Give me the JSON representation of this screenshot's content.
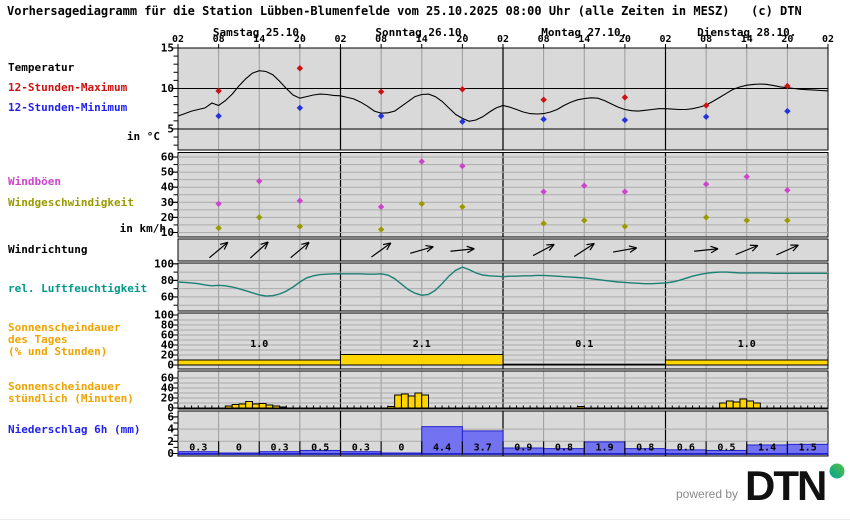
{
  "title": "Vorhersagediagramm für die Station Lübben-Blumenfelde vom 25.10.2025 08:00 Uhr (alle Zeiten in MESZ)   (c) DTN",
  "footer": {
    "powered_by": "powered by",
    "brand": "DTN"
  },
  "row_labels": {
    "temperature": "Temperatur",
    "max12": "12-Stunden-Maximum",
    "min12": "12-Stunden-Minimum",
    "temp_unit": "in °C",
    "gusts": "Windböen",
    "wind_speed": "Windgeschwindigkeit",
    "wind_unit": "in km/h",
    "wind_dir": "Windrichtung",
    "humidity": "rel. Luftfeuchtigkeit",
    "sun_day_1": "Sonnenscheindauer",
    "sun_day_2": "des Tages",
    "sun_day_3": "(% und Stunden)",
    "sun_hour_1": "Sonnenscheindauer",
    "sun_hour_2": "stündlich (Minuten)",
    "precip": "Niederschlag 6h (mm)"
  },
  "colors": {
    "max_red": "#cc1111",
    "min_blue": "#2233dd",
    "gust_magenta": "#cc44cc",
    "speed_olive": "#9a9a00",
    "humidity_teal": "#1b7f74",
    "sunshine_yellow": "#ffd500",
    "precip_fill": "#7373f2",
    "precip_stroke": "#2222cc",
    "panel_bg": "#d9d9d9",
    "grid_gray": "#9c9c9c",
    "grid_light": "#ababab",
    "brand_circle_green": "#57c13e",
    "brand_circle_teal": "#00a398"
  },
  "chart_data": {
    "type": "multi-panel-meteogram",
    "start_label": "Samstag 25.10. 02:00 MESZ",
    "hours_span": 96,
    "days": [
      "Samstag 25.10.",
      "Sonntag 26.10.",
      "Montag 27.10.",
      "Dienstag 28.10."
    ],
    "time_ticks": [
      "02",
      "08",
      "14",
      "20",
      "02",
      "08",
      "14",
      "20",
      "02",
      "08",
      "14",
      "20",
      "02",
      "08",
      "14",
      "20",
      "02"
    ],
    "panels": {
      "temperature": {
        "unit": "°C",
        "axis_labels": [
          15,
          10,
          5
        ],
        "curve_hourly": [
          6.6,
          6.9,
          7.2,
          7.4,
          7.6,
          8.2,
          7.9,
          8.5,
          9.3,
          10.3,
          11.2,
          11.9,
          12.2,
          12.1,
          11.7,
          10.9,
          10.0,
          9.2,
          8.8,
          9.0,
          9.2,
          9.3,
          9.25,
          9.15,
          9.1,
          8.9,
          8.7,
          8.3,
          7.8,
          7.2,
          6.95,
          7.0,
          7.2,
          7.8,
          8.4,
          9.0,
          9.25,
          9.3,
          9.0,
          8.4,
          7.6,
          6.8,
          6.3,
          5.95,
          6.1,
          6.5,
          7.1,
          7.6,
          7.9,
          7.7,
          7.4,
          7.1,
          6.9,
          6.85,
          6.9,
          7.1,
          7.4,
          7.9,
          8.3,
          8.6,
          8.75,
          8.85,
          8.8,
          8.5,
          8.1,
          7.7,
          7.4,
          7.25,
          7.2,
          7.3,
          7.4,
          7.5,
          7.5,
          7.45,
          7.4,
          7.4,
          7.5,
          7.7,
          7.95,
          8.4,
          8.9,
          9.4,
          9.9,
          10.2,
          10.4,
          10.5,
          10.55,
          10.5,
          10.35,
          10.2,
          10.1,
          10.0,
          9.9,
          9.85,
          9.8,
          9.75,
          9.7
        ],
        "points_hours": [
          6,
          18,
          30,
          42,
          54,
          66,
          78,
          90
        ],
        "max12": [
          9.7,
          12.5,
          9.6,
          9.9,
          8.6,
          8.9,
          7.9,
          10.3
        ],
        "min12": [
          6.6,
          7.6,
          6.6,
          5.9,
          6.2,
          6.1,
          6.5,
          7.2
        ]
      },
      "wind": {
        "unit": "km/h",
        "axis_labels": [
          60,
          50,
          40,
          30,
          20,
          10
        ],
        "points_hours": [
          6,
          12,
          18,
          30,
          36,
          42,
          54,
          60,
          66,
          78,
          84,
          90
        ],
        "gusts": [
          29,
          44,
          31,
          27,
          57,
          54,
          37,
          41,
          37,
          42,
          47,
          38
        ],
        "speed": [
          13,
          20,
          14,
          12,
          29,
          27,
          16,
          18,
          14,
          20,
          18,
          18
        ]
      },
      "wind_direction": {
        "points_hours": [
          6,
          12,
          18,
          30,
          36,
          42,
          54,
          60,
          66,
          78,
          84,
          90
        ],
        "arrow_angles_deg_up_from_east": [
          40,
          42,
          40,
          36,
          16,
          6,
          28,
          33,
          10,
          6,
          22,
          24
        ]
      },
      "humidity": {
        "unit": "%",
        "axis_labels": [
          100,
          80,
          60
        ],
        "curve_hourly": [
          78,
          77.5,
          77,
          76,
          74.5,
          73.5,
          74,
          73.5,
          72,
          70,
          67.5,
          65,
          62.5,
          61,
          61.5,
          63.5,
          67,
          72,
          78,
          83,
          85.5,
          87,
          87.5,
          88,
          88,
          88,
          88,
          88,
          87.5,
          87.5,
          88,
          86.5,
          82,
          75.5,
          69,
          64.5,
          62,
          63,
          68,
          76,
          85,
          92,
          96,
          93,
          89,
          86.5,
          85.5,
          85,
          84.5,
          85,
          85,
          85.5,
          85.5,
          86,
          86,
          85.5,
          85,
          84.5,
          84,
          83.5,
          83,
          82,
          81,
          80,
          79,
          78,
          77.5,
          77,
          76.5,
          76,
          76,
          76.5,
          77,
          78,
          80,
          82.5,
          85,
          87,
          88.5,
          89.5,
          90,
          90,
          89.5,
          89,
          89,
          89,
          89,
          89,
          88.5,
          88.5,
          88.5,
          88.5,
          88.5,
          88.5,
          88.5,
          88.5,
          88.5
        ]
      },
      "sunshine_daily": {
        "unit": "% und Stunden",
        "axis_labels": [
          100,
          80,
          60,
          40,
          20,
          0
        ],
        "percent_per_day": [
          10,
          21,
          1,
          10
        ],
        "hours_text_per_day": [
          "1.0",
          "2.1",
          "0.1",
          "1.0"
        ]
      },
      "sunshine_hourly": {
        "unit": "Minuten",
        "axis_labels": [
          60,
          40,
          20,
          0
        ],
        "bars": [
          {
            "day": 0,
            "hour": 9,
            "minutes": 4
          },
          {
            "day": 0,
            "hour": 10,
            "minutes": 7
          },
          {
            "day": 0,
            "hour": 11,
            "minutes": 8
          },
          {
            "day": 0,
            "hour": 12,
            "minutes": 13
          },
          {
            "day": 0,
            "hour": 13,
            "minutes": 8
          },
          {
            "day": 0,
            "hour": 14,
            "minutes": 9
          },
          {
            "day": 0,
            "hour": 15,
            "minutes": 6
          },
          {
            "day": 0,
            "hour": 16,
            "minutes": 4
          },
          {
            "day": 0,
            "hour": 17,
            "minutes": 2
          },
          {
            "day": 1,
            "hour": 9,
            "minutes": 3
          },
          {
            "day": 1,
            "hour": 10,
            "minutes": 26
          },
          {
            "day": 1,
            "hour": 11,
            "minutes": 28
          },
          {
            "day": 1,
            "hour": 12,
            "minutes": 24
          },
          {
            "day": 1,
            "hour": 13,
            "minutes": 30
          },
          {
            "day": 1,
            "hour": 14,
            "minutes": 26
          },
          {
            "day": 2,
            "hour": 13,
            "minutes": 3
          },
          {
            "day": 3,
            "hour": 10,
            "minutes": 10
          },
          {
            "day": 3,
            "hour": 11,
            "minutes": 14
          },
          {
            "day": 3,
            "hour": 12,
            "minutes": 12
          },
          {
            "day": 3,
            "hour": 13,
            "minutes": 18
          },
          {
            "day": 3,
            "hour": 14,
            "minutes": 14
          },
          {
            "day": 3,
            "hour": 15,
            "minutes": 10
          }
        ]
      },
      "precipitation": {
        "unit": "mm",
        "axis_labels": [
          6,
          4,
          2,
          0
        ],
        "values_6h": [
          0.3,
          0,
          0.3,
          0.5,
          0.3,
          0,
          4.4,
          3.7,
          0.9,
          0.8,
          1.9,
          0.8,
          0.6,
          0.5,
          1.4,
          1.5
        ],
        "labels_6h": [
          "0.3",
          "0",
          "0.3",
          "0.5",
          "0.3",
          "0",
          "4.4",
          "3.7",
          "0.9",
          "0.8",
          "1.9",
          "0.8",
          "0.6",
          "0.5",
          "1.4",
          "1.5"
        ]
      }
    }
  }
}
